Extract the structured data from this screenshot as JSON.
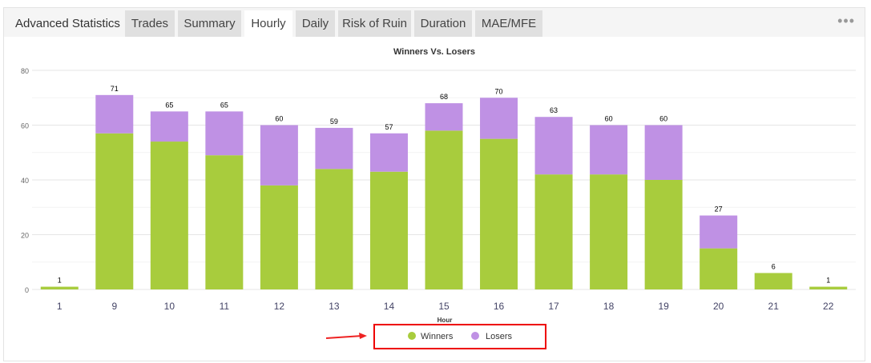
{
  "header": {
    "title": "Advanced Statistics",
    "tabs": [
      "Trades",
      "Summary",
      "Hourly",
      "Daily",
      "Risk of Ruin",
      "Duration",
      "MAE/MFE"
    ],
    "active_tab": "Hourly",
    "more_icon": "ellipsis-icon"
  },
  "chart_data": {
    "type": "bar",
    "stacked": true,
    "title": "Winners Vs. Losers",
    "xlabel": "Hour",
    "ylabel": "",
    "categories": [
      "1",
      "9",
      "10",
      "11",
      "12",
      "13",
      "14",
      "15",
      "16",
      "17",
      "18",
      "19",
      "20",
      "21",
      "22"
    ],
    "series": [
      {
        "name": "Winners",
        "color": "#a8cc3d",
        "values": [
          1,
          57,
          54,
          49,
          38,
          44,
          43,
          58,
          55,
          42,
          42,
          40,
          15,
          6,
          1
        ]
      },
      {
        "name": "Losers",
        "color": "#bf91e4",
        "values": [
          0,
          14,
          11,
          16,
          22,
          15,
          14,
          10,
          15,
          21,
          18,
          20,
          12,
          0,
          0
        ]
      }
    ],
    "totals": [
      1,
      71,
      65,
      65,
      60,
      59,
      57,
      68,
      70,
      63,
      60,
      60,
      27,
      6,
      1
    ],
    "ylim": [
      0,
      80
    ],
    "yticks": [
      0,
      20,
      40,
      60,
      80
    ],
    "grid": true,
    "legend": "bottom-center"
  }
}
